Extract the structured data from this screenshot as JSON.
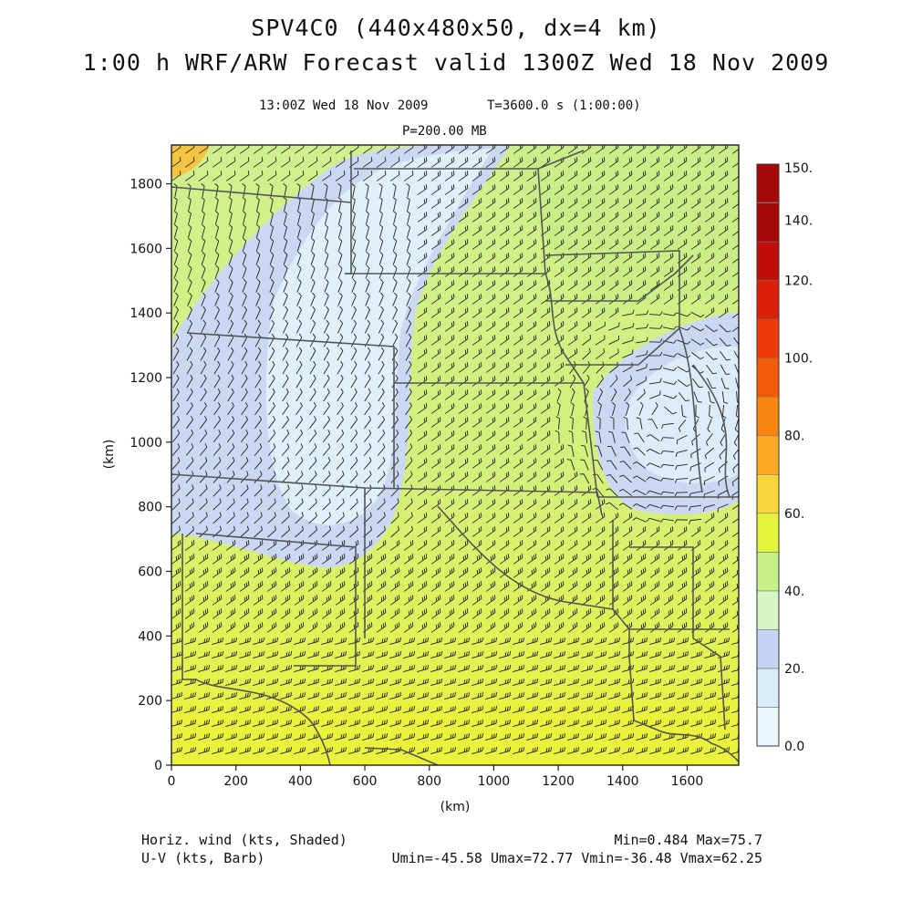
{
  "header": {
    "title_line1": "SPV4C0 (440x480x50, dx=4 km)",
    "title_line2": "1:00 h WRF/ARW Forecast valid 1300Z Wed 18 Nov 2009",
    "valid_time": "13:00Z Wed 18 Nov 2009",
    "model_time": "T=3600.0 s (1:00:00)",
    "pressure_level": "P=200.00 MB"
  },
  "axes": {
    "x_label": "(km)",
    "y_label": "(km)",
    "x_ticks": [
      "0",
      "200",
      "400",
      "600",
      "800",
      "1000",
      "1200",
      "1400",
      "1600"
    ],
    "y_ticks": [
      "0",
      "200",
      "400",
      "600",
      "800",
      "1000",
      "1200",
      "1400",
      "1600",
      "1800"
    ],
    "x_range_km": [
      0,
      1760
    ],
    "y_range_km": [
      0,
      1920
    ]
  },
  "colorbar": {
    "labels": [
      "0.0",
      "20.",
      "40.",
      "60.",
      "80.",
      "100.",
      "120.",
      "140.",
      "150."
    ],
    "colors": [
      "#eaf6fc",
      "#d9ecf9",
      "#c8d4f4",
      "#d6f5c4",
      "#c6f08a",
      "#e4f43c",
      "#fbd63a",
      "#fba824",
      "#f8860e",
      "#f55c0a",
      "#ee3a0a",
      "#dc200a",
      "#c20c0a",
      "#a60808"
    ]
  },
  "footer": {
    "field_shaded": "Horiz. wind (kts, Shaded)",
    "field_barb": "U-V (kts, Barb)",
    "minmax": "Min=0.484 Max=75.7",
    "uv_stats": "Umin=-45.58 Umax=72.77 Vmin=-36.48 Vmax=62.25"
  },
  "icons": {
    "wind_barb": "wind-barb-icon"
  }
}
